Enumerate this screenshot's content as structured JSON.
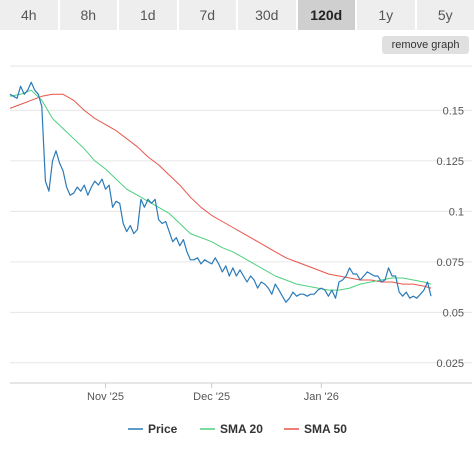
{
  "tabs": [
    {
      "label": "4h",
      "active": false
    },
    {
      "label": "8h",
      "active": false
    },
    {
      "label": "1d",
      "active": false
    },
    {
      "label": "7d",
      "active": false
    },
    {
      "label": "30d",
      "active": false
    },
    {
      "label": "120d",
      "active": true
    },
    {
      "label": "1y",
      "active": false
    },
    {
      "label": "5y",
      "active": false
    }
  ],
  "remove_graph_label": "remove graph",
  "colors": {
    "price": "#2b7bb9",
    "sma20": "#4cd07d",
    "sma50": "#e8544a",
    "grid": "#e6e6e6",
    "active_tab": "#cfcfcf"
  },
  "chart_data": {
    "type": "line",
    "xlabel": "",
    "ylabel": "",
    "x_unit": "days since start of 120d window",
    "x_ticks": [
      {
        "label": "Nov '25",
        "x": 27
      },
      {
        "label": "Dec '25",
        "x": 57
      },
      {
        "label": "Jan '26",
        "x": 88
      }
    ],
    "y_ticks": [
      0.15,
      0.125,
      0.1,
      0.075,
      0.05,
      0.025
    ],
    "ylim": [
      0.015,
      0.172
    ],
    "xlim": [
      0,
      119
    ],
    "grid": true,
    "legend_position": "bottom",
    "series": [
      {
        "name": "Price",
        "color_key": "price",
        "points": [
          [
            0,
            0.158
          ],
          [
            1,
            0.157
          ],
          [
            2,
            0.156
          ],
          [
            3,
            0.162
          ],
          [
            4,
            0.158
          ],
          [
            5,
            0.16
          ],
          [
            6,
            0.164
          ],
          [
            7,
            0.16
          ],
          [
            8,
            0.158
          ],
          [
            9,
            0.152
          ],
          [
            10,
            0.115
          ],
          [
            11,
            0.11
          ],
          [
            12,
            0.125
          ],
          [
            13,
            0.13
          ],
          [
            14,
            0.124
          ],
          [
            15,
            0.12
          ],
          [
            16,
            0.112
          ],
          [
            17,
            0.108
          ],
          [
            18,
            0.109
          ],
          [
            19,
            0.112
          ],
          [
            20,
            0.11
          ],
          [
            21,
            0.113
          ],
          [
            22,
            0.108
          ],
          [
            23,
            0.112
          ],
          [
            24,
            0.115
          ],
          [
            25,
            0.113
          ],
          [
            26,
            0.116
          ],
          [
            27,
            0.111
          ],
          [
            28,
            0.113
          ],
          [
            29,
            0.102
          ],
          [
            30,
            0.105
          ],
          [
            31,
            0.104
          ],
          [
            32,
            0.094
          ],
          [
            33,
            0.09
          ],
          [
            34,
            0.093
          ],
          [
            35,
            0.089
          ],
          [
            36,
            0.091
          ],
          [
            37,
            0.106
          ],
          [
            38,
            0.102
          ],
          [
            39,
            0.106
          ],
          [
            40,
            0.104
          ],
          [
            41,
            0.106
          ],
          [
            42,
            0.096
          ],
          [
            43,
            0.094
          ],
          [
            44,
            0.095
          ],
          [
            45,
            0.09
          ],
          [
            46,
            0.085
          ],
          [
            47,
            0.087
          ],
          [
            48,
            0.083
          ],
          [
            49,
            0.086
          ],
          [
            50,
            0.08
          ],
          [
            51,
            0.076
          ],
          [
            52,
            0.076
          ],
          [
            53,
            0.077
          ],
          [
            54,
            0.074
          ],
          [
            55,
            0.076
          ],
          [
            56,
            0.075
          ],
          [
            57,
            0.074
          ],
          [
            58,
            0.077
          ],
          [
            59,
            0.074
          ],
          [
            60,
            0.07
          ],
          [
            61,
            0.073
          ],
          [
            62,
            0.068
          ],
          [
            63,
            0.072
          ],
          [
            64,
            0.068
          ],
          [
            65,
            0.071
          ],
          [
            66,
            0.068
          ],
          [
            67,
            0.065
          ],
          [
            68,
            0.068
          ],
          [
            69,
            0.066
          ],
          [
            70,
            0.062
          ],
          [
            71,
            0.065
          ],
          [
            72,
            0.064
          ],
          [
            73,
            0.062
          ],
          [
            74,
            0.059
          ],
          [
            75,
            0.064
          ],
          [
            76,
            0.061
          ],
          [
            77,
            0.058
          ],
          [
            78,
            0.055
          ],
          [
            79,
            0.057
          ],
          [
            80,
            0.06
          ],
          [
            81,
            0.058
          ],
          [
            82,
            0.059
          ],
          [
            83,
            0.059
          ],
          [
            84,
            0.058
          ],
          [
            85,
            0.059
          ],
          [
            86,
            0.059
          ],
          [
            87,
            0.061
          ],
          [
            88,
            0.062
          ],
          [
            89,
            0.061
          ],
          [
            90,
            0.058
          ],
          [
            91,
            0.061
          ],
          [
            92,
            0.057
          ],
          [
            93,
            0.065
          ],
          [
            94,
            0.066
          ],
          [
            95,
            0.068
          ],
          [
            96,
            0.072
          ],
          [
            97,
            0.069
          ],
          [
            98,
            0.069
          ],
          [
            99,
            0.066
          ],
          [
            100,
            0.068
          ],
          [
            101,
            0.07
          ],
          [
            102,
            0.069
          ],
          [
            103,
            0.068
          ],
          [
            104,
            0.068
          ],
          [
            105,
            0.065
          ],
          [
            106,
            0.066
          ],
          [
            107,
            0.072
          ],
          [
            108,
            0.068
          ],
          [
            109,
            0.068
          ],
          [
            110,
            0.06
          ],
          [
            111,
            0.058
          ],
          [
            112,
            0.06
          ],
          [
            113,
            0.057
          ],
          [
            114,
            0.058
          ],
          [
            115,
            0.057
          ],
          [
            116,
            0.059
          ],
          [
            117,
            0.061
          ],
          [
            118,
            0.065
          ],
          [
            119,
            0.058
          ]
        ]
      },
      {
        "name": "SMA 20",
        "color_key": "sma20",
        "points": [
          [
            0,
            0.157
          ],
          [
            3,
            0.158
          ],
          [
            6,
            0.16
          ],
          [
            9,
            0.155
          ],
          [
            12,
            0.146
          ],
          [
            15,
            0.141
          ],
          [
            18,
            0.136
          ],
          [
            21,
            0.131
          ],
          [
            24,
            0.125
          ],
          [
            27,
            0.121
          ],
          [
            30,
            0.116
          ],
          [
            33,
            0.111
          ],
          [
            36,
            0.108
          ],
          [
            39,
            0.105
          ],
          [
            42,
            0.102
          ],
          [
            45,
            0.099
          ],
          [
            48,
            0.094
          ],
          [
            51,
            0.089
          ],
          [
            54,
            0.087
          ],
          [
            57,
            0.085
          ],
          [
            60,
            0.082
          ],
          [
            63,
            0.08
          ],
          [
            66,
            0.077
          ],
          [
            69,
            0.074
          ],
          [
            72,
            0.071
          ],
          [
            75,
            0.068
          ],
          [
            78,
            0.066
          ],
          [
            81,
            0.064
          ],
          [
            84,
            0.063
          ],
          [
            87,
            0.062
          ],
          [
            90,
            0.061
          ],
          [
            93,
            0.061
          ],
          [
            96,
            0.062
          ],
          [
            99,
            0.064
          ],
          [
            102,
            0.065
          ],
          [
            105,
            0.066
          ],
          [
            108,
            0.067
          ],
          [
            111,
            0.067
          ],
          [
            114,
            0.066
          ],
          [
            117,
            0.065
          ],
          [
            119,
            0.064
          ]
        ]
      },
      {
        "name": "SMA 50",
        "color_key": "sma50",
        "points": [
          [
            0,
            0.151
          ],
          [
            3,
            0.153
          ],
          [
            6,
            0.155
          ],
          [
            9,
            0.157
          ],
          [
            12,
            0.158
          ],
          [
            15,
            0.158
          ],
          [
            18,
            0.155
          ],
          [
            21,
            0.15
          ],
          [
            24,
            0.146
          ],
          [
            27,
            0.143
          ],
          [
            30,
            0.14
          ],
          [
            33,
            0.136
          ],
          [
            36,
            0.132
          ],
          [
            39,
            0.127
          ],
          [
            42,
            0.123
          ],
          [
            45,
            0.118
          ],
          [
            48,
            0.113
          ],
          [
            51,
            0.107
          ],
          [
            54,
            0.102
          ],
          [
            57,
            0.098
          ],
          [
            60,
            0.095
          ],
          [
            63,
            0.092
          ],
          [
            66,
            0.089
          ],
          [
            69,
            0.086
          ],
          [
            72,
            0.083
          ],
          [
            75,
            0.08
          ],
          [
            78,
            0.077
          ],
          [
            81,
            0.075
          ],
          [
            84,
            0.073
          ],
          [
            87,
            0.071
          ],
          [
            90,
            0.069
          ],
          [
            93,
            0.068
          ],
          [
            96,
            0.067
          ],
          [
            99,
            0.066
          ],
          [
            102,
            0.066
          ],
          [
            105,
            0.065
          ],
          [
            108,
            0.065
          ],
          [
            111,
            0.064
          ],
          [
            114,
            0.064
          ],
          [
            117,
            0.063
          ],
          [
            119,
            0.062
          ]
        ]
      }
    ]
  }
}
